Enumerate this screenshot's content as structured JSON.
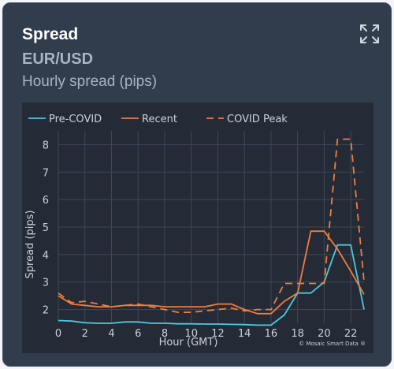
{
  "card": {
    "title": "Spread",
    "subtitle": "EUR/USD",
    "description": "Hourly spread (pips)",
    "expand_icon": "expand-arrows-icon"
  },
  "colors": {
    "pre_covid": "#4ec7dd",
    "recent": "#f07d3e",
    "covid_peak": "#f07d3e",
    "card_bg": "#313c4d",
    "plot_bg": "#252b36"
  },
  "chart_data": {
    "type": "line",
    "xlabel": "Hour (GMT)",
    "ylabel": "Spread (pips)",
    "xlim": [
      0,
      23
    ],
    "ylim": [
      1.5,
      8.5
    ],
    "xticks": [
      0,
      2,
      4,
      6,
      8,
      10,
      12,
      14,
      16,
      18,
      20,
      22
    ],
    "yticks": [
      2,
      3,
      4,
      5,
      6,
      7,
      8
    ],
    "grid": true,
    "legend": "top-left",
    "credit": "© Mosaic Smart Data ®",
    "x": [
      0,
      1,
      2,
      3,
      4,
      5,
      6,
      7,
      8,
      9,
      10,
      11,
      12,
      13,
      14,
      15,
      16,
      17,
      18,
      19,
      20,
      21,
      22,
      23
    ],
    "series": [
      {
        "name": "Pre-COVID",
        "style": "solid",
        "values": [
          1.6,
          1.58,
          1.52,
          1.5,
          1.5,
          1.55,
          1.55,
          1.5,
          1.5,
          1.48,
          1.48,
          1.47,
          1.47,
          1.46,
          1.45,
          1.43,
          1.43,
          1.8,
          2.6,
          2.6,
          3.0,
          4.35,
          4.35,
          2.0
        ]
      },
      {
        "name": "Recent",
        "style": "solid",
        "values": [
          2.5,
          2.2,
          2.15,
          2.1,
          2.1,
          2.15,
          2.15,
          2.15,
          2.1,
          2.1,
          2.1,
          2.1,
          2.2,
          2.2,
          2.0,
          1.85,
          1.85,
          2.3,
          2.6,
          4.85,
          4.85,
          4.2,
          3.4,
          2.55
        ]
      },
      {
        "name": "COVID Peak",
        "style": "dash",
        "values": [
          2.6,
          2.25,
          2.3,
          2.2,
          2.1,
          2.15,
          2.2,
          2.1,
          2.0,
          1.9,
          1.9,
          1.95,
          2.0,
          2.05,
          1.95,
          2.0,
          2.0,
          2.95,
          2.95,
          2.95,
          2.95,
          8.2,
          8.2,
          3.0
        ]
      }
    ]
  }
}
